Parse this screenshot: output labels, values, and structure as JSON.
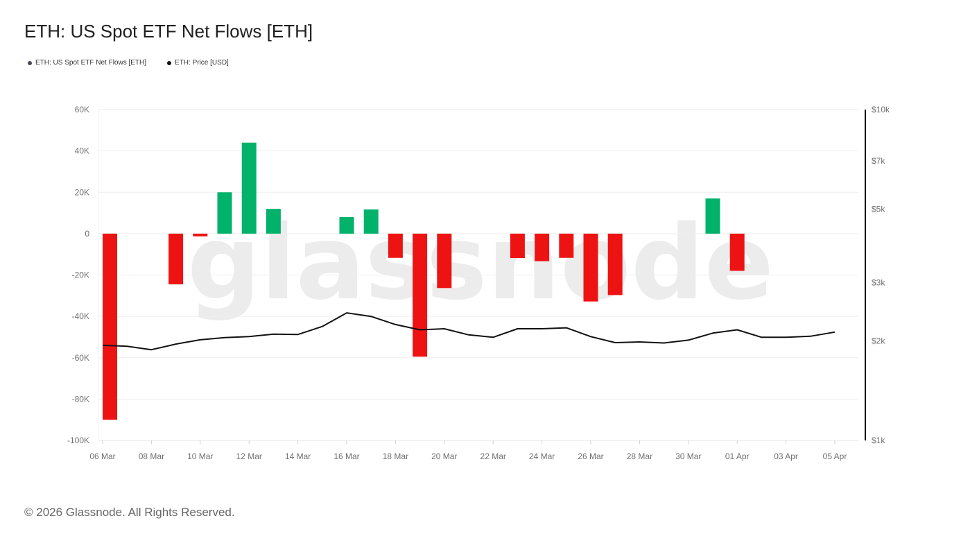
{
  "title": "ETH: US Spot ETF Net Flows [ETH]",
  "legend": [
    {
      "label": "ETH: US Spot ETF Net Flows [ETH]",
      "color": "#444a55"
    },
    {
      "label": "ETH: Price [USD]",
      "color": "#111111"
    }
  ],
  "watermark": "glassnode",
  "footer": "© 2026 Glassnode. All Rights Reserved.",
  "colors": {
    "inflow": "#00b26a",
    "outflow": "#ee1313",
    "price_line": "#111111",
    "grid": "#eeeeee"
  },
  "chart_data": {
    "type": "bar",
    "x_tick_labels": [
      "06 Mar",
      "08 Mar",
      "10 Mar",
      "12 Mar",
      "14 Mar",
      "16 Mar",
      "18 Mar",
      "20 Mar",
      "22 Mar",
      "24 Mar",
      "26 Mar",
      "28 Mar",
      "30 Mar",
      "01 Apr",
      "03 Apr",
      "05 Apr"
    ],
    "y_left": {
      "ylim": [
        -100000,
        60000
      ],
      "tick_labels": [
        "60K",
        "40K",
        "20K",
        "0",
        "-20K",
        "-40K",
        "-60K",
        "-80K",
        "-100K"
      ],
      "tick_values": [
        60000,
        40000,
        20000,
        0,
        -20000,
        -40000,
        -60000,
        -80000,
        -100000
      ]
    },
    "y_right": {
      "scale": "log",
      "ylim": [
        1000,
        10000
      ],
      "tick_labels": [
        "$10k",
        "$7k",
        "$5k",
        "$3k",
        "$2k",
        "$1k"
      ],
      "tick_values": [
        10000,
        7000,
        5000,
        3000,
        2000,
        1000
      ]
    },
    "series": [
      {
        "name": "ETH: US Spot ETF Net Flows [ETH]",
        "type": "bar",
        "points": [
          {
            "date": "06 Mar",
            "value": -90000
          },
          {
            "date": "07 Mar",
            "value": 0
          },
          {
            "date": "08 Mar",
            "value": 0
          },
          {
            "date": "09 Mar",
            "value": -24500
          },
          {
            "date": "10 Mar",
            "value": -1300
          },
          {
            "date": "11 Mar",
            "value": 20000
          },
          {
            "date": "12 Mar",
            "value": 44000
          },
          {
            "date": "13 Mar",
            "value": 12000
          },
          {
            "date": "14 Mar",
            "value": 0
          },
          {
            "date": "15 Mar",
            "value": 0
          },
          {
            "date": "16 Mar",
            "value": 8000
          },
          {
            "date": "17 Mar",
            "value": 11700
          },
          {
            "date": "18 Mar",
            "value": -11700
          },
          {
            "date": "19 Mar",
            "value": -59500
          },
          {
            "date": "20 Mar",
            "value": -26300
          },
          {
            "date": "21 Mar",
            "value": 0
          },
          {
            "date": "22 Mar",
            "value": 0
          },
          {
            "date": "23 Mar",
            "value": -11800
          },
          {
            "date": "24 Mar",
            "value": -13300
          },
          {
            "date": "25 Mar",
            "value": -11700
          },
          {
            "date": "26 Mar",
            "value": -32800
          },
          {
            "date": "27 Mar",
            "value": -29700
          },
          {
            "date": "28 Mar",
            "value": 0
          },
          {
            "date": "29 Mar",
            "value": 0
          },
          {
            "date": "30 Mar",
            "value": 0
          },
          {
            "date": "31 Mar",
            "value": 17000
          },
          {
            "date": "01 Apr",
            "value": -18000
          },
          {
            "date": "02 Apr",
            "value": 0
          },
          {
            "date": "03 Apr",
            "value": 0
          },
          {
            "date": "04 Apr",
            "value": 0
          },
          {
            "date": "05 Apr",
            "value": 0
          }
        ]
      },
      {
        "name": "ETH: Price [USD]",
        "type": "line",
        "axis": "right",
        "points": [
          {
            "date": "06 Mar",
            "value": 1940
          },
          {
            "date": "07 Mar",
            "value": 1925
          },
          {
            "date": "08 Mar",
            "value": 1880
          },
          {
            "date": "09 Mar",
            "value": 1955
          },
          {
            "date": "10 Mar",
            "value": 2015
          },
          {
            "date": "11 Mar",
            "value": 2045
          },
          {
            "date": "12 Mar",
            "value": 2060
          },
          {
            "date": "13 Mar",
            "value": 2095
          },
          {
            "date": "14 Mar",
            "value": 2090
          },
          {
            "date": "15 Mar",
            "value": 2210
          },
          {
            "date": "16 Mar",
            "value": 2430
          },
          {
            "date": "17 Mar",
            "value": 2370
          },
          {
            "date": "18 Mar",
            "value": 2240
          },
          {
            "date": "19 Mar",
            "value": 2160
          },
          {
            "date": "20 Mar",
            "value": 2175
          },
          {
            "date": "21 Mar",
            "value": 2085
          },
          {
            "date": "22 Mar",
            "value": 2050
          },
          {
            "date": "23 Mar",
            "value": 2175
          },
          {
            "date": "24 Mar",
            "value": 2175
          },
          {
            "date": "25 Mar",
            "value": 2190
          },
          {
            "date": "26 Mar",
            "value": 2060
          },
          {
            "date": "27 Mar",
            "value": 1975
          },
          {
            "date": "28 Mar",
            "value": 1985
          },
          {
            "date": "29 Mar",
            "value": 1970
          },
          {
            "date": "30 Mar",
            "value": 2010
          },
          {
            "date": "31 Mar",
            "value": 2110
          },
          {
            "date": "01 Apr",
            "value": 2160
          },
          {
            "date": "02 Apr",
            "value": 2050
          },
          {
            "date": "03 Apr",
            "value": 2050
          },
          {
            "date": "04 Apr",
            "value": 2065
          },
          {
            "date": "05 Apr",
            "value": 2125
          }
        ]
      }
    ],
    "grid": true,
    "legend_position": "top-left"
  }
}
